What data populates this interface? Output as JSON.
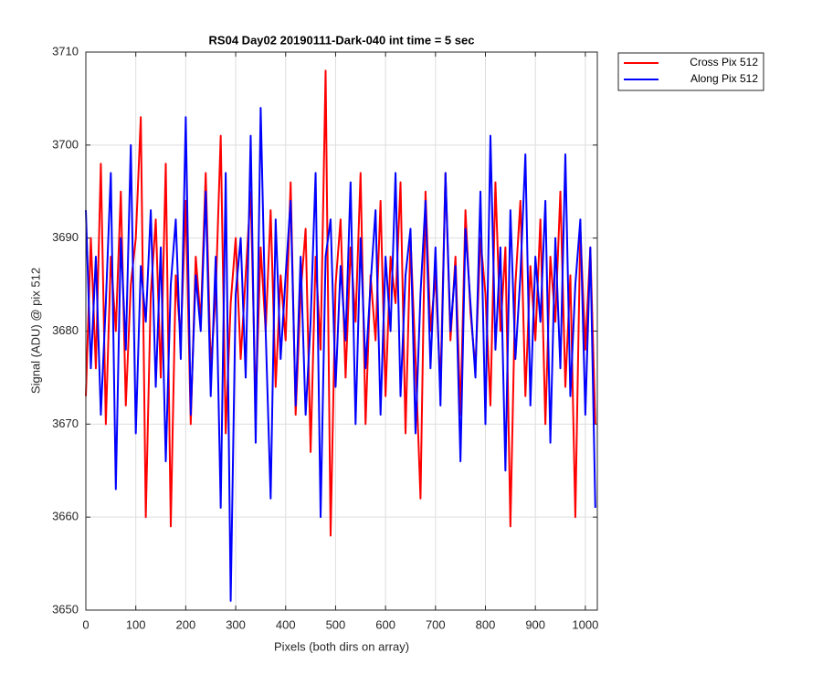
{
  "chart_data": {
    "type": "line",
    "title": "RS04 Day02 20190111-Dark-040 int time = 5 sec",
    "xlabel": "Pixels (both dirs on array)",
    "ylabel": "Signal (ADU) @ pix 512",
    "x": [
      0,
      10,
      20,
      30,
      40,
      50,
      60,
      70,
      80,
      90,
      100,
      110,
      120,
      130,
      140,
      150,
      160,
      170,
      180,
      190,
      200,
      210,
      220,
      230,
      240,
      250,
      260,
      270,
      280,
      290,
      300,
      310,
      320,
      330,
      340,
      350,
      360,
      370,
      380,
      390,
      400,
      410,
      420,
      430,
      440,
      450,
      460,
      470,
      480,
      490,
      500,
      510,
      520,
      530,
      540,
      550,
      560,
      570,
      580,
      590,
      600,
      610,
      620,
      630,
      640,
      650,
      660,
      670,
      680,
      690,
      700,
      710,
      720,
      730,
      740,
      750,
      760,
      770,
      780,
      790,
      800,
      810,
      820,
      830,
      840,
      850,
      860,
      870,
      880,
      890,
      900,
      910,
      920,
      930,
      940,
      950,
      960,
      970,
      980,
      990,
      1000,
      1010,
      1020
    ],
    "series": [
      {
        "name": "Cross Pix 512",
        "color": "#ff0000",
        "values": [
          3673,
          3690,
          3676,
          3698,
          3670,
          3688,
          3680,
          3695,
          3672,
          3685,
          3690,
          3703,
          3660,
          3684,
          3692,
          3675,
          3698,
          3659,
          3686,
          3679,
          3694,
          3670,
          3688,
          3681,
          3697,
          3676,
          3684,
          3701,
          3669,
          3683,
          3690,
          3677,
          3686,
          3695,
          3672,
          3689,
          3680,
          3693,
          3674,
          3686,
          3679,
          3696,
          3671,
          3684,
          3691,
          3667,
          3688,
          3678,
          3708,
          3658,
          3685,
          3692,
          3675,
          3689,
          3681,
          3697,
          3670,
          3686,
          3679,
          3694,
          3673,
          3688,
          3683,
          3696,
          3669,
          3690,
          3677,
          3662,
          3695,
          3680,
          3686,
          3674,
          3697,
          3679,
          3688,
          3671,
          3693,
          3682,
          3676,
          3690,
          3684,
          3672,
          3696,
          3680,
          3689,
          3659,
          3685,
          3694,
          3673,
          3687,
          3679,
          3692,
          3670,
          3688,
          3681,
          3695,
          3674,
          3686,
          3660,
          3691,
          3678,
          3689,
          3670
        ]
      },
      {
        "name": "Along Pix 512",
        "color": "#0000ff",
        "values": [
          3693,
          3676,
          3688,
          3671,
          3683,
          3697,
          3663,
          3690,
          3678,
          3700,
          3669,
          3687,
          3681,
          3693,
          3674,
          3689,
          3666,
          3685,
          3692,
          3677,
          3703,
          3671,
          3686,
          3680,
          3695,
          3673,
          3688,
          3661,
          3697,
          3651,
          3684,
          3690,
          3675,
          3701,
          3668,
          3704,
          3680,
          3662,
          3692,
          3677,
          3686,
          3694,
          3672,
          3688,
          3671,
          3681,
          3697,
          3660,
          3688,
          3692,
          3674,
          3687,
          3679,
          3696,
          3670,
          3690,
          3676,
          3685,
          3693,
          3671,
          3688,
          3680,
          3697,
          3673,
          3686,
          3691,
          3669,
          3684,
          3694,
          3676,
          3689,
          3672,
          3697,
          3680,
          3687,
          3666,
          3691,
          3683,
          3675,
          3695,
          3670,
          3701,
          3678,
          3689,
          3665,
          3693,
          3677,
          3686,
          3699,
          3672,
          3688,
          3681,
          3694,
          3668,
          3690,
          3676,
          3699,
          3673,
          3685,
          3692,
          3671,
          3689,
          3661
        ]
      }
    ],
    "xlim": [
      0,
      1024
    ],
    "xticks": [
      0,
      100,
      200,
      300,
      400,
      500,
      600,
      700,
      800,
      900,
      1000
    ],
    "ylim": [
      3650,
      3710
    ],
    "yticks": [
      3650,
      3660,
      3670,
      3680,
      3690,
      3700,
      3710
    ],
    "grid": true,
    "legend": "outside-upper-right"
  }
}
